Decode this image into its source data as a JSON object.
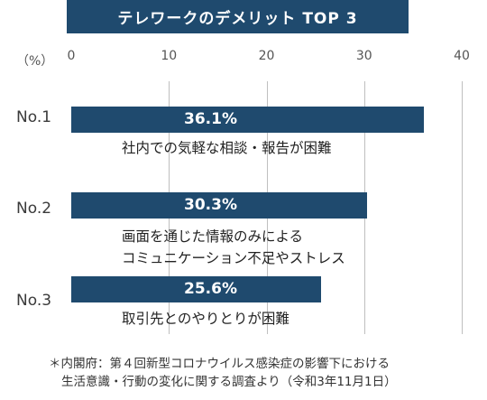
{
  "chart_data": {
    "type": "bar",
    "orientation": "horizontal",
    "title": "テレワークのデメリット TOP 3",
    "unit_label": "（%）",
    "xlim": [
      0,
      40
    ],
    "ticks": [
      "0",
      "10",
      "20",
      "30",
      "40"
    ],
    "grid": true,
    "categories": [
      {
        "rank": "No.1",
        "lines": [
          "社内での気軽な相談・報告が困難"
        ],
        "value": 36.1,
        "value_label": "36.1%"
      },
      {
        "rank": "No.2",
        "lines": [
          "画面を通じた情報のみによる",
          "コミュニケーション不足やストレス"
        ],
        "value": 30.3,
        "value_label": "30.3%"
      },
      {
        "rank": "No.3",
        "lines": [
          "取引先とのやりとりが困難"
        ],
        "value": 25.6,
        "value_label": "25.6%"
      }
    ]
  },
  "footnote": {
    "line1": "＊内閣府：第４回新型コロナウイルス感染症の影響下における",
    "line2": "生活意識・行動の変化に関する調査より（令和3年11月1日）"
  },
  "colors": {
    "bar": "#1f4a6e",
    "grid": "#bfbfbf"
  }
}
